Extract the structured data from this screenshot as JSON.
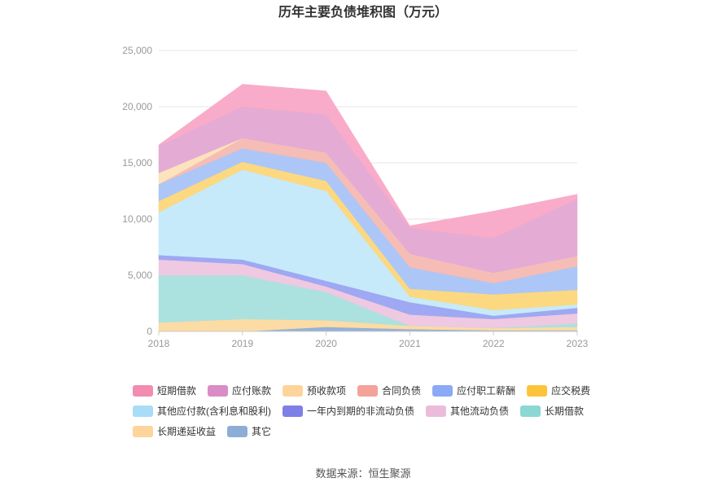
{
  "chart_data": {
    "type": "area",
    "stacked": true,
    "title": "历年主要负债堆积图（万元）",
    "x": [
      "2018",
      "2019",
      "2020",
      "2021",
      "2022",
      "2023"
    ],
    "ylim": [
      0,
      25000
    ],
    "yticks": [
      "0",
      "5,000",
      "10,000",
      "15,000",
      "20,000",
      "25,000"
    ],
    "grid": true,
    "legend_position": "bottom",
    "series": [
      {
        "name": "其它",
        "color": "#8eadd6",
        "values": [
          0,
          0,
          400,
          200,
          100,
          100
        ]
      },
      {
        "name": "长期递延收益",
        "color": "#fcd9a0",
        "values": [
          800,
          1100,
          600,
          300,
          200,
          300
        ]
      },
      {
        "name": "长期借款",
        "color": "#a6e0dd",
        "values": [
          4200,
          3900,
          2500,
          0,
          0,
          300
        ]
      },
      {
        "name": "其他流动负债",
        "color": "#eec6df",
        "values": [
          1400,
          1000,
          500,
          1000,
          800,
          900
        ]
      },
      {
        "name": "一年内到期的非流动负债",
        "color": "#9aa3f2",
        "values": [
          400,
          400,
          500,
          1100,
          300,
          500
        ]
      },
      {
        "name": "其他应付款(含利息和股利)",
        "color": "#c4e9fa",
        "values": [
          3800,
          8000,
          8000,
          500,
          500,
          300
        ]
      },
      {
        "name": "应交税费",
        "color": "#fcd67a",
        "values": [
          1000,
          700,
          900,
          700,
          1400,
          1300
        ]
      },
      {
        "name": "应付职工薪酬",
        "color": "#a8c4f7",
        "values": [
          1500,
          1200,
          1600,
          1900,
          1000,
          2100
        ]
      },
      {
        "name": "合同负债",
        "color": "#f6b9b2",
        "values": [
          0,
          900,
          900,
          1200,
          900,
          900
        ]
      },
      {
        "name": "预收款项",
        "color": "#fde2b8",
        "values": [
          1000,
          0,
          0,
          0,
          0,
          0
        ]
      },
      {
        "name": "应付账款",
        "color": "#e3a8d2",
        "values": [
          2400,
          2800,
          3400,
          2300,
          3100,
          5100
        ]
      },
      {
        "name": "短期借款",
        "color": "#f9a8c6",
        "values": [
          100,
          2000,
          2100,
          200,
          2400,
          400
        ]
      }
    ],
    "legend_order": [
      "短期借款",
      "应付账款",
      "预收款项",
      "合同负债",
      "应付职工薪酬",
      "应交税费",
      "其他应付款(含利息和股利)",
      "一年内到期的非流动负债",
      "其他流动负债",
      "长期借款",
      "长期递延收益",
      "其它"
    ],
    "legend_colors": {
      "短期借款": "#f28cb1",
      "应付账款": "#d98cc6",
      "预收款项": "#fdd49a",
      "合同负债": "#f4a29a",
      "应付职工薪酬": "#8aaaf5",
      "应交税费": "#fcc43a",
      "其他应付款(含利息和股利)": "#a9dcf6",
      "一年内到期的非流动负债": "#7f7fe8",
      "其他流动负债": "#ebbcd9",
      "长期借款": "#8ad7d4",
      "长期递延收益": "#fdd49a",
      "其它": "#8eadd6"
    }
  },
  "source_text": "数据来源：恒生聚源"
}
